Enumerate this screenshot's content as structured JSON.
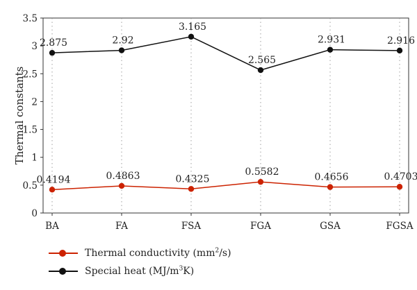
{
  "chart_data": {
    "type": "line",
    "ylabel": "Thermal constants",
    "categories": [
      "BA",
      "FA",
      "FSA",
      "FGA",
      "GSA",
      "FGSA"
    ],
    "ylim": [
      0,
      3.5
    ],
    "yticks": [
      "0",
      "0.5",
      "1",
      "1.5",
      "2",
      "2.5",
      "3",
      "3.5"
    ],
    "grid": "dotted vertical",
    "legend_position": "bottom-left",
    "series": [
      {
        "name": "Thermal conductivity (mm2/s)",
        "color": "#cc2200",
        "values": [
          0.4194,
          0.4863,
          0.4325,
          0.5582,
          0.4656,
          0.4703
        ],
        "labels": [
          "0.4194",
          "0.4863",
          "0.4325",
          "0.5582",
          "0.4656",
          "0.4703"
        ]
      },
      {
        "name": "Special heat (MJ/m3K)",
        "color": "#111111",
        "values": [
          2.875,
          2.92,
          3.165,
          2.565,
          2.931,
          2.916
        ],
        "labels": [
          "2.875",
          "2.92",
          "3.165",
          "2.565",
          "2.931",
          "2.916"
        ]
      }
    ]
  },
  "legend": {
    "tc": {
      "prefix": "Thermal conductivity (mm",
      "sup": "2",
      "suffix": "/s)"
    },
    "sh": {
      "prefix": "Special heat (MJ/m",
      "sup": "3",
      "suffix": "K)"
    }
  }
}
